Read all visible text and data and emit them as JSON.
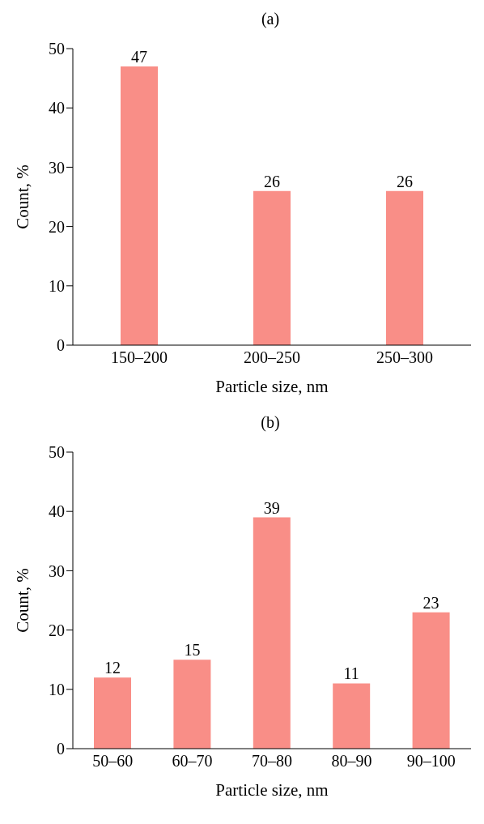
{
  "chart_data": [
    {
      "type": "bar",
      "title": "(a)",
      "xlabel": "Particle size, nm",
      "ylabel": "Count, %",
      "categories": [
        "150–200",
        "200–250",
        "250–300"
      ],
      "values": [
        47,
        26,
        26
      ],
      "color": "#f98e87",
      "ylim": [
        0,
        50
      ],
      "yticks": [
        0,
        10,
        20,
        30,
        40,
        50
      ],
      "data_labels": true,
      "grid": false,
      "legend": false
    },
    {
      "type": "bar",
      "title": "(b)",
      "xlabel": "Particle size, nm",
      "ylabel": "Count, %",
      "categories": [
        "50–60",
        "60–70",
        "70–80",
        "80–90",
        "90–100"
      ],
      "values": [
        12,
        15,
        39,
        11,
        23
      ],
      "color": "#f98e87",
      "ylim": [
        0,
        50
      ],
      "yticks": [
        0,
        10,
        20,
        30,
        40,
        50
      ],
      "data_labels": true,
      "grid": false,
      "legend": false
    }
  ]
}
